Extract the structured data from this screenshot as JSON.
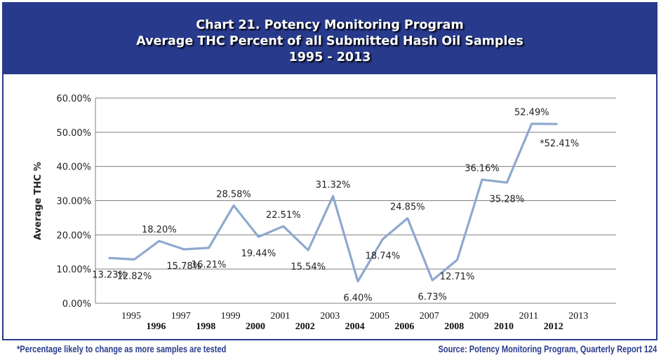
{
  "colors": {
    "banner": "#283a8c",
    "line": "#8ea8cf",
    "grid": "#7f7f7f",
    "text": "#222222"
  },
  "header": {
    "line1": "Chart 21.  Potency Monitoring Program",
    "line2": "Average THC Percent of all Submitted Hash Oil Samples",
    "line3": "1995 - 2013"
  },
  "chart_data": {
    "type": "line",
    "title": "Chart 21.  Potency Monitoring Program Average THC Percent of all Submitted Hash Oil Samples 1995 - 2013",
    "ylabel": "Average THC %",
    "xlabel": "",
    "ylim": [
      0,
      60
    ],
    "y_ticks": [
      "0.00%",
      "10.00%",
      "20.00%",
      "30.00%",
      "40.00%",
      "50.00%",
      "60.00%"
    ],
    "grid": true,
    "legend": "none",
    "categories": [
      "1995",
      "1996",
      "1997",
      "1998",
      "1999",
      "2000",
      "2001",
      "2002",
      "2003",
      "2004",
      "2005",
      "2006",
      "2007",
      "2008",
      "2009",
      "2010",
      "2011",
      "2012",
      "2013"
    ],
    "series": [
      {
        "values": [
          13.23,
          12.82,
          18.2,
          15.78,
          16.21,
          28.58,
          19.44,
          22.51,
          15.54,
          31.32,
          6.4,
          18.74,
          24.85,
          6.73,
          12.71,
          36.16,
          35.28,
          52.49,
          52.41
        ],
        "labels": [
          "13.23%",
          "12.82%",
          "18.20%",
          "15.78%",
          "16.21%",
          "28.58%",
          "19.44%",
          "22.51%",
          "15.54%",
          "31.32%",
          "6.40%",
          "18.74%",
          "24.85%",
          "6.73%",
          "12.71%",
          "36.16%",
          "35.28%",
          "52.49%",
          "*52.41%"
        ]
      }
    ]
  },
  "footer": {
    "footnote": "*Percentage likely to change as more samples are tested",
    "source": "Source:  Potency Monitoring Program, Quarterly Report 124"
  }
}
